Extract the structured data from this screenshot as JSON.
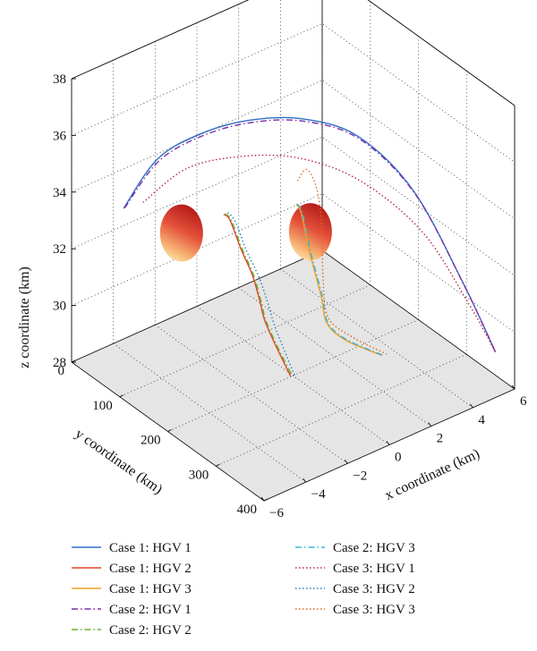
{
  "chart_data": {
    "type": "line3d",
    "title": "",
    "xlabel": "x coordinate (km)",
    "ylabel": "y coordinate (km)",
    "zlabel": "z coordinate (km)",
    "x_ticks": [
      "−6",
      "−4",
      "−2",
      "0",
      "2",
      "4",
      "6"
    ],
    "y_ticks": [
      "0",
      "100",
      "200",
      "300",
      "400"
    ],
    "z_ticks": [
      "28",
      "30",
      "32",
      "34",
      "36",
      "38"
    ],
    "xlim": [
      -6,
      6
    ],
    "ylim": [
      0,
      400
    ],
    "zlim": [
      28,
      38
    ],
    "grid": true,
    "floor_color": "#e5e5e5",
    "legend_position": "bottom",
    "legend": [
      {
        "label": "Case 1: HGV 1",
        "color": "#2f6ec4",
        "dash": "solid"
      },
      {
        "label": "Case 1: HGV 2",
        "color": "#e0442a",
        "dash": "solid"
      },
      {
        "label": "Case 1: HGV 3",
        "color": "#f0a020",
        "dash": "solid"
      },
      {
        "label": "Case 2: HGV 1",
        "color": "#7b2fa8",
        "dash": "dashdot"
      },
      {
        "label": "Case 2: HGV 2",
        "color": "#6ab32e",
        "dash": "dashdot"
      },
      {
        "label": "Case 2: HGV 3",
        "color": "#3ab5d8",
        "dash": "dashdot"
      },
      {
        "label": "Case 3: HGV 1",
        "color": "#b52a45",
        "dash": "dotted"
      },
      {
        "label": "Case 3: HGV 2",
        "color": "#2a7fc0",
        "dash": "dotted"
      },
      {
        "label": "Case 3: HGV 3",
        "color": "#e06a20",
        "dash": "dotted"
      }
    ],
    "series": [
      {
        "name": "Case 1: HGV 1",
        "color": "#2f6ec4",
        "dash": "solid",
        "x": [
          -4.2,
          -3.5,
          -2.6,
          -1.4,
          0.0,
          1.5,
          3.0,
          4.2,
          5.2
        ],
        "y": [
          30,
          70,
          120,
          170,
          220,
          270,
          320,
          370,
          395
        ],
        "z": [
          33.2,
          35.2,
          36.4,
          37.1,
          37.3,
          36.8,
          35.0,
          32.0,
          29.5
        ]
      },
      {
        "name": "Case 2: HGV 1",
        "color": "#7b2fa8",
        "dash": "dashdot",
        "x": [
          -4.15,
          -3.45,
          -2.55,
          -1.35,
          0.05,
          1.55,
          3.05,
          4.25,
          5.2
        ],
        "y": [
          30,
          70,
          120,
          170,
          220,
          270,
          320,
          370,
          395
        ],
        "z": [
          33.2,
          35.1,
          36.3,
          37.0,
          37.2,
          36.7,
          34.9,
          31.9,
          29.5
        ]
      },
      {
        "name": "Case 3: HGV 1",
        "color": "#b52a45",
        "dash": "dotted",
        "x": [
          -3.5,
          -2.6,
          -1.5,
          0.0,
          1.6,
          3.2,
          4.4,
          5.2
        ],
        "y": [
          40,
          90,
          150,
          210,
          270,
          330,
          375,
          395
        ],
        "z": [
          33.3,
          34.8,
          35.6,
          35.8,
          35.2,
          33.6,
          31.2,
          29.5
        ]
      },
      {
        "name": "Case 1: HGV 2",
        "color": "#e0442a",
        "dash": "solid",
        "x": [
          -1.6,
          -1.3,
          -1.0,
          -0.8,
          -0.8,
          -0.9,
          -1.1,
          -1.5
        ],
        "y": [
          125,
          125,
          135,
          150,
          165,
          180,
          210,
          260
        ],
        "z": [
          33.3,
          33.0,
          32.0,
          31.2,
          30.5,
          30.0,
          29.6,
          29.2
        ]
      },
      {
        "name": "Case 2: HGV 2",
        "color": "#6ab32e",
        "dash": "dashdot",
        "x": [
          -1.55,
          -1.25,
          -0.95,
          -0.75,
          -0.75,
          -0.85,
          -1.05,
          -1.45
        ],
        "y": [
          125,
          125,
          135,
          150,
          165,
          180,
          210,
          262
        ],
        "z": [
          33.3,
          33.0,
          32.0,
          31.2,
          30.5,
          30.0,
          29.6,
          29.2
        ]
      },
      {
        "name": "Case 3: HGV 2",
        "color": "#2a7fc0",
        "dash": "dotted",
        "x": [
          -1.4,
          -1.1,
          -0.8,
          -0.55,
          -0.5,
          -0.6,
          -0.85,
          -1.3
        ],
        "y": [
          125,
          128,
          138,
          152,
          168,
          185,
          215,
          262
        ],
        "z": [
          33.3,
          32.9,
          31.9,
          31.1,
          30.4,
          29.9,
          29.5,
          29.1
        ]
      },
      {
        "name": "Case 1: HGV 3",
        "color": "#f0a020",
        "dash": "solid",
        "x": [
          0.6,
          0.85,
          1.05,
          1.1,
          1.05,
          1.5,
          2.4
        ],
        "y": [
          180,
          180,
          190,
          210,
          225,
          245,
          280
        ],
        "z": [
          33.6,
          33.2,
          31.8,
          30.6,
          29.8,
          29.3,
          28.9
        ]
      },
      {
        "name": "Case 2: HGV 3",
        "color": "#3ab5d8",
        "dash": "dashdot",
        "x": [
          0.65,
          0.9,
          1.1,
          1.15,
          1.1,
          1.55,
          2.45
        ],
        "y": [
          180,
          180,
          190,
          210,
          225,
          245,
          281
        ],
        "z": [
          33.6,
          33.2,
          31.8,
          30.6,
          29.8,
          29.3,
          28.9
        ]
      },
      {
        "name": "Case 3: HGV 3",
        "color": "#e06a20",
        "dash": "dotted",
        "x": [
          0.9,
          1.3,
          1.6,
          1.5,
          1.2,
          1.1,
          1.7,
          2.6
        ],
        "y": [
          170,
          172,
          180,
          195,
          210,
          225,
          248,
          282
        ],
        "z": [
          34.2,
          34.5,
          33.8,
          32.6,
          31.2,
          30.0,
          29.4,
          28.9
        ]
      }
    ],
    "obstacles": [
      {
        "x": -3.5,
        "y": 120,
        "z": 33.2
      },
      {
        "x": 0.6,
        "y": 210,
        "z": 33.0
      }
    ]
  }
}
